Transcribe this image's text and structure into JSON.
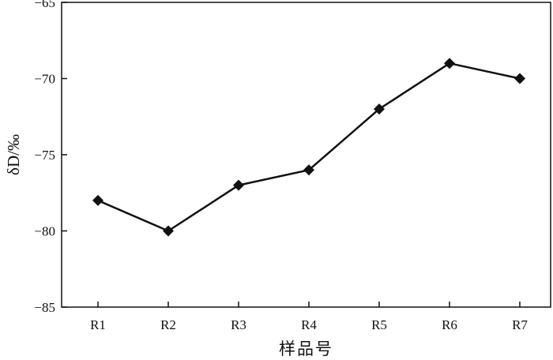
{
  "chart_data": {
    "type": "line",
    "title": "",
    "xlabel": "样品号",
    "ylabel": "δD/‰",
    "categories": [
      "R1",
      "R2",
      "R3",
      "R4",
      "R5",
      "R6",
      "R7"
    ],
    "series": [
      {
        "values": [
          -78,
          -80,
          -77,
          -76,
          -72,
          -69,
          -70
        ]
      }
    ],
    "ylim": [
      -85,
      -65
    ],
    "yticks": [
      -85,
      -80,
      -75,
      -70,
      -65
    ],
    "ytick_labels": [
      "−85",
      "−80",
      "−75",
      "−70",
      "−65"
    ],
    "marker": "diamond",
    "grid": false,
    "legend": "none",
    "colors": {
      "line": "#111111",
      "axis": "#111111"
    }
  }
}
